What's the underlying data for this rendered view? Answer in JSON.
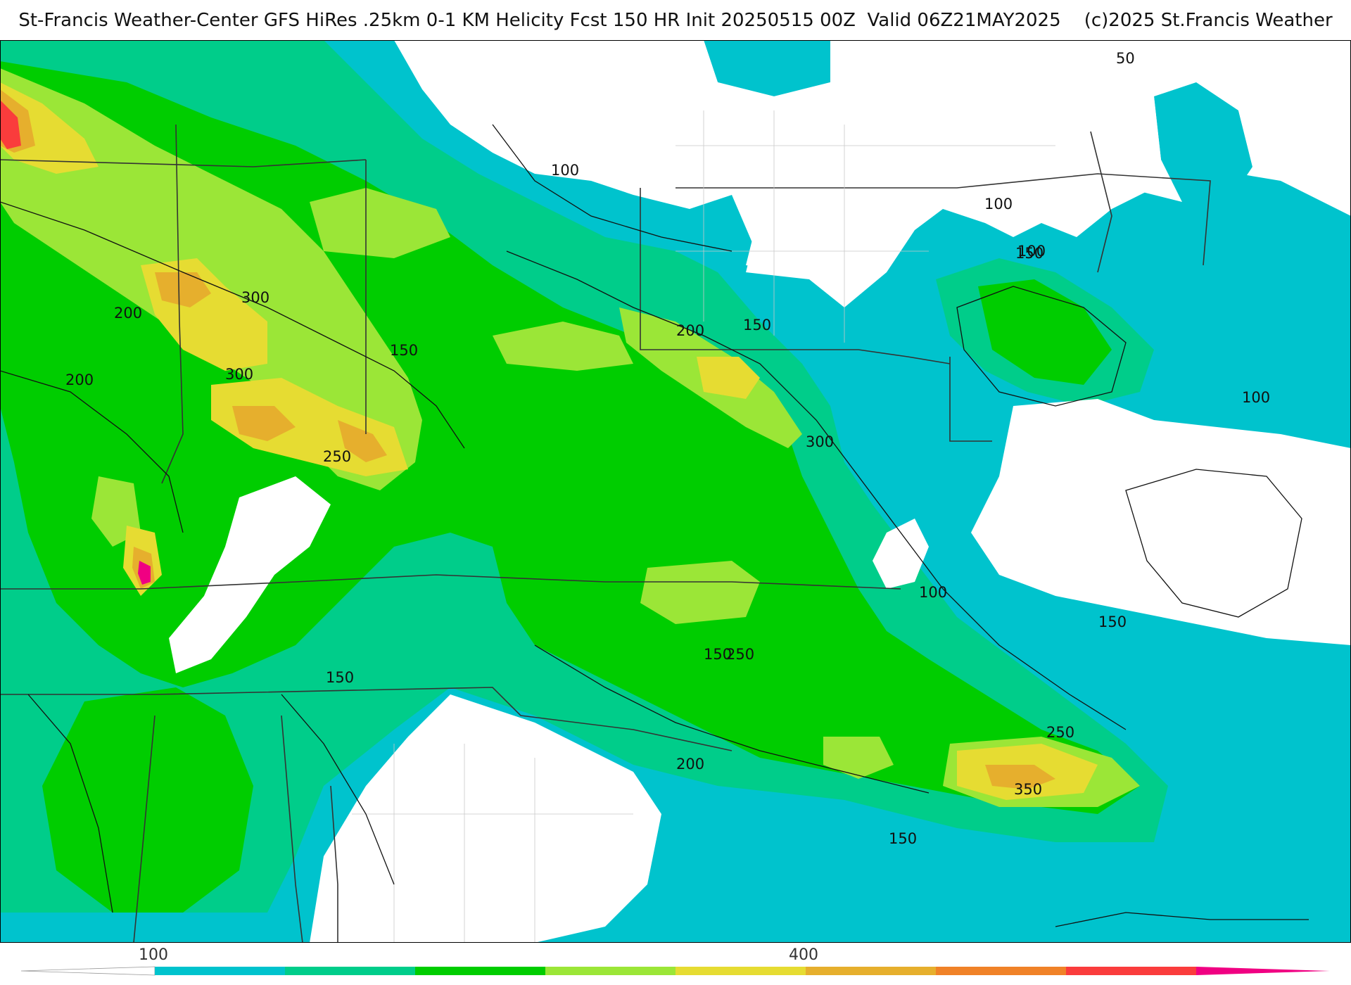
{
  "header": {
    "title": "St-Francis Weather-Center GFS HiRes .25km 0-1 KM Helicity Fcst 150 HR Init 20250515 00Z  Valid 06Z21MAY2025    (c)2025 St.Francis Weather"
  },
  "colors": {
    "water_background": "#ffffff",
    "contour_line": "#111111",
    "border_line": "#333333",
    "county_line": "#c8c8c8",
    "bins": [
      "#00c3cd",
      "#00cd8a",
      "#00cd00",
      "#9be637",
      "#e6dc32",
      "#e6af2d",
      "#f08228",
      "#fa3c3c",
      "#f00082"
    ]
  },
  "contour_labels": [
    "50",
    "100",
    "100",
    "100",
    "100",
    "100",
    "150",
    "150",
    "150",
    "150",
    "150",
    "150",
    "150",
    "200",
    "200",
    "200",
    "200",
    "250",
    "250",
    "250",
    "300",
    "300",
    "300",
    "350"
  ],
  "colorbar": {
    "tick_labels": [
      "100",
      "400"
    ]
  }
}
